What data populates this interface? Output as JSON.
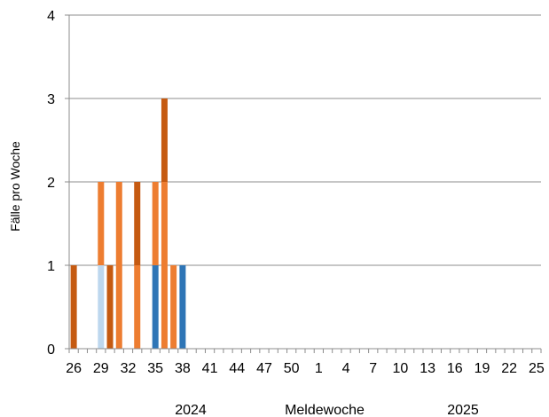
{
  "chart_data": {
    "type": "bar",
    "stacked": true,
    "ylabel": "Fälle pro Woche",
    "xlabel": "Meldewoche",
    "year_labels": [
      "2024",
      "2025"
    ],
    "ylim": [
      0,
      4
    ],
    "yticks": [
      0,
      1,
      2,
      3,
      4
    ],
    "grid": true,
    "legend": "none",
    "categories": [
      "26",
      "27",
      "28",
      "29",
      "30",
      "31",
      "32",
      "33",
      "34",
      "35",
      "36",
      "37",
      "38",
      "39",
      "40",
      "41",
      "42",
      "43",
      "44",
      "45",
      "46",
      "47",
      "48",
      "49",
      "50",
      "51",
      "52",
      "1",
      "2",
      "3",
      "4",
      "5",
      "6",
      "7",
      "8",
      "9",
      "10",
      "11",
      "12",
      "13",
      "14",
      "15",
      "16",
      "17",
      "18",
      "19",
      "20",
      "21",
      "22",
      "23",
      "24",
      "25"
    ],
    "xtick_labels": [
      "26",
      "29",
      "32",
      "35",
      "38",
      "41",
      "44",
      "47",
      "50",
      "1",
      "4",
      "7",
      "10",
      "13",
      "16",
      "19",
      "22",
      "25"
    ],
    "series": [
      {
        "color": "#bdd7ee",
        "values": [
          0,
          0,
          0,
          1,
          0,
          0,
          0,
          0,
          0,
          0,
          0,
          0,
          0,
          0,
          0,
          0,
          0,
          0,
          0,
          0,
          0,
          0,
          0,
          0,
          0,
          0,
          0,
          0,
          0,
          0,
          0,
          0,
          0,
          0,
          0,
          0,
          0,
          0,
          0,
          0,
          0,
          0,
          0,
          0,
          0,
          0,
          0,
          0,
          0,
          0,
          0,
          0
        ]
      },
      {
        "color": "#2e75b6",
        "values": [
          0,
          0,
          0,
          0,
          0,
          0,
          0,
          0,
          0,
          1,
          0,
          0,
          1,
          0,
          0,
          0,
          0,
          0,
          0,
          0,
          0,
          0,
          0,
          0,
          0,
          0,
          0,
          0,
          0,
          0,
          0,
          0,
          0,
          0,
          0,
          0,
          0,
          0,
          0,
          0,
          0,
          0,
          0,
          0,
          0,
          0,
          0,
          0,
          0,
          0,
          0,
          0
        ]
      },
      {
        "color": "#ed7d31",
        "values": [
          0,
          0,
          0,
          1,
          0,
          2,
          0,
          1,
          0,
          1,
          2,
          1,
          0,
          0,
          0,
          0,
          0,
          0,
          0,
          0,
          0,
          0,
          0,
          0,
          0,
          0,
          0,
          0,
          0,
          0,
          0,
          0,
          0,
          0,
          0,
          0,
          0,
          0,
          0,
          0,
          0,
          0,
          0,
          0,
          0,
          0,
          0,
          0,
          0,
          0,
          0,
          0
        ]
      },
      {
        "color": "#c55a11",
        "values": [
          1,
          0,
          0,
          0,
          1,
          0,
          0,
          1,
          0,
          0,
          1,
          0,
          0,
          0,
          0,
          0,
          0,
          0,
          0,
          0,
          0,
          0,
          0,
          0,
          0,
          0,
          0,
          0,
          0,
          0,
          0,
          0,
          0,
          0,
          0,
          0,
          0,
          0,
          0,
          0,
          0,
          0,
          0,
          0,
          0,
          0,
          0,
          0,
          0,
          0,
          0,
          0
        ]
      }
    ]
  }
}
